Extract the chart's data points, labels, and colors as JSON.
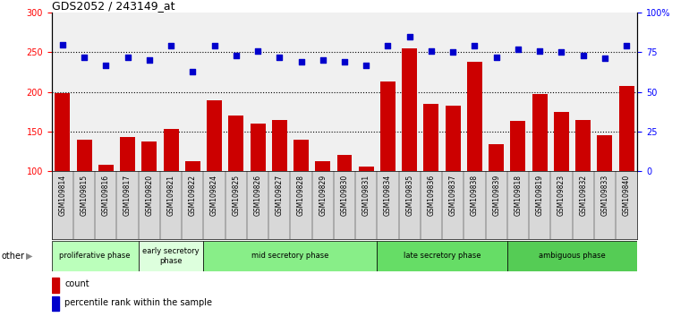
{
  "title": "GDS2052 / 243149_at",
  "samples": [
    "GSM109814",
    "GSM109815",
    "GSM109816",
    "GSM109817",
    "GSM109820",
    "GSM109821",
    "GSM109822",
    "GSM109824",
    "GSM109825",
    "GSM109826",
    "GSM109827",
    "GSM109828",
    "GSM109829",
    "GSM109830",
    "GSM109831",
    "GSM109834",
    "GSM109835",
    "GSM109836",
    "GSM109837",
    "GSM109838",
    "GSM109839",
    "GSM109818",
    "GSM109819",
    "GSM109823",
    "GSM109832",
    "GSM109833",
    "GSM109840"
  ],
  "counts": [
    199,
    140,
    108,
    143,
    138,
    153,
    113,
    190,
    170,
    160,
    165,
    140,
    113,
    120,
    106,
    213,
    255,
    185,
    183,
    238,
    134,
    163,
    197,
    175,
    165,
    145,
    208
  ],
  "percentiles": [
    80,
    72,
    67,
    72,
    70,
    79,
    63,
    79,
    73,
    76,
    72,
    69,
    70,
    69,
    67,
    79,
    85,
    76,
    75,
    79,
    72,
    77,
    76,
    75,
    73,
    71,
    79
  ],
  "bar_color": "#cc0000",
  "dot_color": "#0000cc",
  "ylim_left": [
    100,
    300
  ],
  "ylim_right": [
    0,
    100
  ],
  "yticks_left": [
    100,
    150,
    200,
    250,
    300
  ],
  "yticks_right": [
    0,
    25,
    50,
    75,
    100
  ],
  "ytick_labels_right": [
    "0",
    "25",
    "50",
    "75",
    "100%"
  ],
  "hlines": [
    150,
    200,
    250
  ],
  "phases": [
    {
      "label": "proliferative phase",
      "start": 0,
      "end": 4,
      "color": "#bbffbb"
    },
    {
      "label": "early secretory\nphase",
      "start": 4,
      "end": 7,
      "color": "#ddffdd"
    },
    {
      "label": "mid secretory phase",
      "start": 7,
      "end": 15,
      "color": "#88ee88"
    },
    {
      "label": "late secretory phase",
      "start": 15,
      "end": 21,
      "color": "#66dd66"
    },
    {
      "label": "ambiguous phase",
      "start": 21,
      "end": 27,
      "color": "#55cc55"
    }
  ],
  "legend_count_label": "count",
  "legend_pct_label": "percentile rank within the sample",
  "other_label": "other",
  "plot_bg_color": "#f0f0f0",
  "tick_bg_color": "#d8d8d8"
}
